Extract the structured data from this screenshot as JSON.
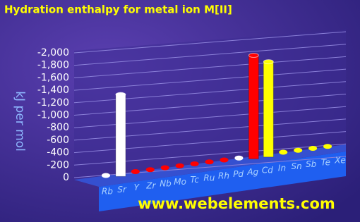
{
  "chart_data": {
    "type": "bar3d",
    "title": "Hydration enthalpy for metal ion M[II]",
    "y_label": "kJ per mol",
    "watermark": "www.webelements.com",
    "categories": [
      "Rb",
      "Sr",
      "Y",
      "Zr",
      "Nb",
      "Mo",
      "Tc",
      "Ru",
      "Rh",
      "Pd",
      "Ag",
      "Cd",
      "In",
      "Sn",
      "Sb",
      "Te",
      "Xe"
    ],
    "values": [
      null,
      -1443,
      null,
      null,
      null,
      null,
      null,
      null,
      null,
      null,
      -1950,
      -1806,
      null,
      null,
      null,
      null,
      null
    ],
    "colors": [
      "#ffffff",
      "#ffffff",
      "#ff0000",
      "#ff0000",
      "#ff0000",
      "#ff0000",
      "#ff0000",
      "#ff0000",
      "#ff0000",
      "#ffffff",
      "#ff0000",
      "#ffff00",
      "#ffff00",
      "#ffff00",
      "#ffff00",
      "#ffff00",
      null
    ],
    "ylim": [
      0,
      -2000
    ],
    "yticks": [
      {
        "value": -2000,
        "label": "-2,000"
      },
      {
        "value": -1800,
        "label": "-1,800"
      },
      {
        "value": -1600,
        "label": "-1,600"
      },
      {
        "value": -1400,
        "label": "-1,400"
      },
      {
        "value": -1200,
        "label": "-1,200"
      },
      {
        "value": -1000,
        "label": "-1,000"
      },
      -800,
      -600,
      -400,
      -200,
      0
    ],
    "grid": true
  }
}
